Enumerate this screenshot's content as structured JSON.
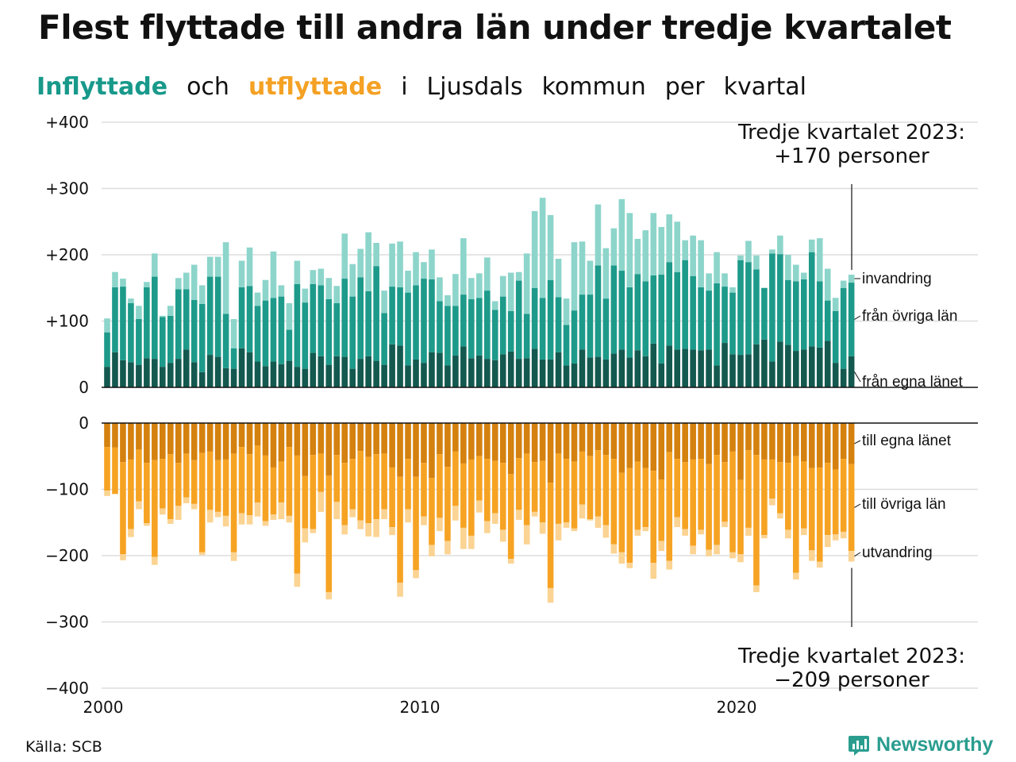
{
  "title": "Flest flyttade till andra län under tredje kvartalet",
  "subtitle": {
    "inflyttade": "Inflyttade",
    "och": "och",
    "utflyttade": "utflyttade",
    "rest": [
      "i",
      "Ljusdals",
      "kommun",
      "per",
      "kvartal"
    ]
  },
  "source": "Källa: SCB",
  "brand": "Newsworthy",
  "colors": {
    "in_egna": "#13594f",
    "in_ovriga": "#1d9a8a",
    "invandring": "#8dd5cb",
    "ut_egna": "#d4810f",
    "ut_ovriga": "#f6a323",
    "utvandring": "#fbd392",
    "grid": "#dddddd",
    "brand": "#2a9d8f"
  },
  "chart_data": {
    "type": "bar",
    "stacked": true,
    "x_start": "2000 Q1",
    "x_end": "2023 Q3",
    "x_ticks": [
      "2000",
      "2010",
      "2020"
    ],
    "upper": {
      "ylim": [
        0,
        400
      ],
      "y_ticks": [
        "0",
        "+100",
        "+200",
        "+300",
        "+400"
      ],
      "series": [
        {
          "name": "från egna länet",
          "values": [
            31,
            53,
            41,
            38,
            34,
            44,
            43,
            31,
            37,
            43,
            57,
            38,
            23,
            49,
            46,
            29,
            28,
            59,
            53,
            39,
            32,
            39,
            35,
            40,
            31,
            28,
            52,
            47,
            34,
            47,
            46,
            28,
            43,
            47,
            40,
            34,
            65,
            63,
            33,
            42,
            37,
            53,
            52,
            33,
            48,
            62,
            44,
            48,
            43,
            41,
            50,
            54,
            43,
            44,
            58,
            42,
            42,
            53,
            33,
            36,
            57,
            45,
            46,
            42,
            51,
            57,
            45,
            56,
            47,
            66,
            36,
            63,
            57,
            58,
            57,
            56,
            57,
            33,
            67,
            50,
            49,
            50,
            65,
            72,
            39,
            69,
            64,
            55,
            57,
            62,
            60,
            70,
            37,
            28,
            47
          ]
        },
        {
          "name": "från övriga län",
          "values": [
            52,
            98,
            111,
            89,
            69,
            107,
            124,
            75,
            71,
            105,
            91,
            94,
            103,
            118,
            121,
            82,
            31,
            92,
            100,
            84,
            99,
            96,
            102,
            47,
            125,
            100,
            104,
            107,
            99,
            80,
            118,
            109,
            123,
            98,
            143,
            78,
            87,
            88,
            110,
            112,
            127,
            110,
            78,
            90,
            75,
            78,
            89,
            87,
            103,
            76,
            87,
            61,
            118,
            67,
            92,
            93,
            120,
            83,
            61,
            80,
            83,
            95,
            138,
            92,
            133,
            119,
            106,
            115,
            113,
            103,
            134,
            126,
            117,
            134,
            111,
            95,
            89,
            124,
            85,
            93,
            143,
            139,
            113,
            78,
            163,
            132,
            98,
            105,
            106,
            142,
            100,
            61,
            78,
            122,
            111
          ]
        },
        {
          "name": "invandring",
          "values": [
            21,
            23,
            12,
            7,
            20,
            8,
            35,
            2,
            15,
            17,
            25,
            53,
            28,
            30,
            30,
            108,
            44,
            40,
            58,
            20,
            31,
            70,
            17,
            40,
            35,
            21,
            21,
            25,
            32,
            26,
            68,
            49,
            43,
            89,
            35,
            34,
            65,
            69,
            33,
            50,
            25,
            45,
            36,
            16,
            48,
            85,
            32,
            37,
            50,
            13,
            31,
            58,
            13,
            91,
            116,
            151,
            98,
            58,
            40,
            103,
            80,
            51,
            92,
            76,
            56,
            108,
            112,
            53,
            77,
            94,
            72,
            72,
            76,
            30,
            61,
            71,
            26,
            47,
            20,
            8,
            7,
            32,
            21,
            0,
            6,
            28,
            38,
            25,
            10,
            19,
            65,
            48,
            20,
            11,
            12
          ]
        }
      ],
      "annotation": [
        "Tredje kvartalet 2023:",
        "+170 personer"
      ]
    },
    "lower": {
      "ylim": [
        -400,
        0
      ],
      "y_ticks": [
        "0",
        "−100",
        "−200",
        "−300",
        "−400"
      ],
      "series": [
        {
          "name": "till egna länet",
          "values": [
            -36,
            -37,
            -59,
            -55,
            -40,
            -60,
            -56,
            -54,
            -47,
            -60,
            -46,
            -56,
            -45,
            -43,
            -56,
            -55,
            -46,
            -36,
            -47,
            -34,
            -49,
            -67,
            -58,
            -36,
            -49,
            -80,
            -48,
            -46,
            -79,
            -48,
            -60,
            -54,
            -42,
            -51,
            -47,
            -46,
            -67,
            -81,
            -54,
            -81,
            -60,
            -83,
            -47,
            -66,
            -43,
            -61,
            -55,
            -50,
            -54,
            -57,
            -60,
            -77,
            -53,
            -46,
            -59,
            -57,
            -90,
            -46,
            -54,
            -58,
            -43,
            -50,
            -41,
            -48,
            -54,
            -75,
            -68,
            -58,
            -68,
            -72,
            -85,
            -44,
            -54,
            -59,
            -55,
            -54,
            -62,
            -48,
            -59,
            -43,
            -86,
            -41,
            -48,
            -55,
            -55,
            -59,
            -60,
            -50,
            -58,
            -68,
            -67,
            -60,
            -70,
            -54,
            -62
          ]
        },
        {
          "name": "till övriga län",
          "values": [
            -66,
            -70,
            -139,
            -105,
            -78,
            -91,
            -146,
            -75,
            -98,
            -65,
            -66,
            -66,
            -150,
            -88,
            -78,
            -85,
            -149,
            -100,
            -92,
            -86,
            -99,
            -71,
            -62,
            -104,
            -178,
            -79,
            -112,
            -58,
            -176,
            -71,
            -94,
            -76,
            -105,
            -100,
            -98,
            -84,
            -90,
            -160,
            -76,
            -141,
            -81,
            -101,
            -96,
            -112,
            -82,
            -97,
            -115,
            -67,
            -94,
            -79,
            -101,
            -128,
            -78,
            -108,
            -75,
            -93,
            -159,
            -106,
            -96,
            -101,
            -80,
            -95,
            -100,
            -106,
            -129,
            -120,
            -143,
            -103,
            -89,
            -139,
            -93,
            -164,
            -88,
            -101,
            -130,
            -107,
            -129,
            -136,
            -90,
            -152,
            -112,
            -117,
            -197,
            -114,
            -59,
            -77,
            -101,
            -176,
            -101,
            -124,
            -142,
            -109,
            -98,
            -110,
            -131
          ]
        },
        {
          "name": "utvandring",
          "values": [
            -8,
            0,
            -9,
            -12,
            -12,
            -4,
            -12,
            -9,
            -7,
            -21,
            -9,
            -8,
            -4,
            -19,
            -8,
            -16,
            -13,
            -17,
            -14,
            -21,
            -7,
            -8,
            -25,
            -10,
            -20,
            -21,
            -6,
            -30,
            -11,
            -26,
            -14,
            -12,
            -13,
            -20,
            -27,
            -15,
            -12,
            -21,
            -20,
            -12,
            -13,
            -17,
            -20,
            -20,
            -22,
            -32,
            -20,
            -18,
            -18,
            -16,
            -18,
            -7,
            -15,
            -29,
            -7,
            -17,
            -22,
            -25,
            -8,
            -4,
            -21,
            -2,
            -17,
            -19,
            -14,
            -17,
            -8,
            -9,
            -6,
            -24,
            -15,
            -13,
            -15,
            -10,
            -13,
            -7,
            -10,
            -14,
            -8,
            -9,
            -12,
            -12,
            -10,
            -5,
            -10,
            -8,
            -13,
            -10,
            -10,
            -16,
            -9,
            -18,
            -9,
            -10,
            -16
          ]
        }
      ],
      "annotation": [
        "Tredje kvartalet 2023:",
        "−209 personer"
      ]
    },
    "labels_upper": [
      "invandring",
      "från övriga län",
      "från egna länet"
    ],
    "labels_lower": [
      "till egna länet",
      "till övriga län",
      "utvandring"
    ],
    "grid": true,
    "legend": "right-end labels"
  }
}
